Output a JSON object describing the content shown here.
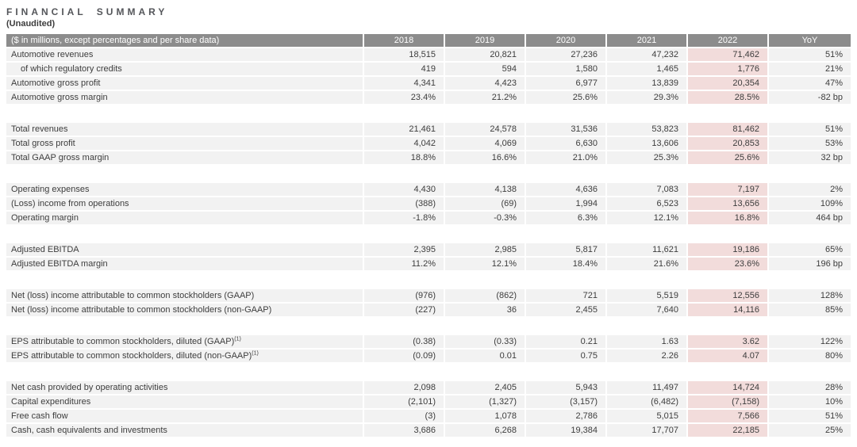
{
  "title": "FINANCIAL SUMMARY",
  "subtitle": "(Unaudited)",
  "colors": {
    "header_bg": "#8c8c8c",
    "header_text": "#ffffff",
    "row_bg": "#f2f2f2",
    "highlight_bg": "#f2dcdb",
    "text": "#3d3d3d",
    "title_text": "#54565a"
  },
  "table": {
    "label_header": "($ in millions, except percentages and per share data)",
    "columns": [
      "2018",
      "2019",
      "2020",
      "2021",
      "2022",
      "YoY"
    ],
    "highlight_column": "2022",
    "sections": [
      {
        "rows": [
          {
            "label": "Automotive revenues",
            "values": [
              "18,515",
              "20,821",
              "27,236",
              "47,232",
              "71,462",
              "51%"
            ]
          },
          {
            "label": "of which regulatory credits",
            "indent": true,
            "values": [
              "419",
              "594",
              "1,580",
              "1,465",
              "1,776",
              "21%"
            ]
          },
          {
            "label": "Automotive gross profit",
            "values": [
              "4,341",
              "4,423",
              "6,977",
              "13,839",
              "20,354",
              "47%"
            ]
          },
          {
            "label": "Automotive gross margin",
            "values": [
              "23.4%",
              "21.2%",
              "25.6%",
              "29.3%",
              "28.5%",
              "-82 bp"
            ]
          }
        ]
      },
      {
        "rows": [
          {
            "label": "Total revenues",
            "values": [
              "21,461",
              "24,578",
              "31,536",
              "53,823",
              "81,462",
              "51%"
            ]
          },
          {
            "label": "Total gross profit",
            "values": [
              "4,042",
              "4,069",
              "6,630",
              "13,606",
              "20,853",
              "53%"
            ]
          },
          {
            "label": "Total GAAP gross margin",
            "values": [
              "18.8%",
              "16.6%",
              "21.0%",
              "25.3%",
              "25.6%",
              "32 bp"
            ]
          }
        ]
      },
      {
        "rows": [
          {
            "label": "Operating expenses",
            "values": [
              "4,430",
              "4,138",
              "4,636",
              "7,083",
              "7,197",
              "2%"
            ]
          },
          {
            "label": "(Loss) income from operations",
            "values": [
              "(388)",
              "(69)",
              "1,994",
              "6,523",
              "13,656",
              "109%"
            ]
          },
          {
            "label": "Operating margin",
            "values": [
              "-1.8%",
              "-0.3%",
              "6.3%",
              "12.1%",
              "16.8%",
              "464 bp"
            ]
          }
        ]
      },
      {
        "rows": [
          {
            "label": "Adjusted EBITDA",
            "values": [
              "2,395",
              "2,985",
              "5,817",
              "11,621",
              "19,186",
              "65%"
            ]
          },
          {
            "label": "Adjusted EBITDA margin",
            "values": [
              "11.2%",
              "12.1%",
              "18.4%",
              "21.6%",
              "23.6%",
              "196 bp"
            ]
          }
        ]
      },
      {
        "rows": [
          {
            "label": "Net (loss) income attributable to common stockholders (GAAP)",
            "values": [
              "(976)",
              "(862)",
              "721",
              "5,519",
              "12,556",
              "128%"
            ]
          },
          {
            "label": "Net (loss) income attributable to common stockholders (non-GAAP)",
            "values": [
              "(227)",
              "36",
              "2,455",
              "7,640",
              "14,116",
              "85%"
            ]
          }
        ]
      },
      {
        "rows": [
          {
            "label": "EPS attributable to common stockholders, diluted (GAAP)",
            "sup": "(1)",
            "values": [
              "(0.38)",
              "(0.33)",
              "0.21",
              "1.63",
              "3.62",
              "122%"
            ]
          },
          {
            "label": "EPS attributable to common stockholders, diluted (non-GAAP)",
            "sup": "(1)",
            "values": [
              "(0.09)",
              "0.01",
              "0.75",
              "2.26",
              "4.07",
              "80%"
            ]
          }
        ]
      },
      {
        "rows": [
          {
            "label": "Net cash provided by operating activities",
            "values": [
              "2,098",
              "2,405",
              "5,943",
              "11,497",
              "14,724",
              "28%"
            ]
          },
          {
            "label": "Capital expenditures",
            "values": [
              "(2,101)",
              "(1,327)",
              "(3,157)",
              "(6,482)",
              "(7,158)",
              "10%"
            ]
          },
          {
            "label": "Free cash flow",
            "values": [
              "(3)",
              "1,078",
              "2,786",
              "5,015",
              "7,566",
              "51%"
            ]
          },
          {
            "label": "Cash, cash equivalents and investments",
            "values": [
              "3,686",
              "6,268",
              "19,384",
              "17,707",
              "22,185",
              "25%"
            ]
          }
        ]
      }
    ]
  }
}
